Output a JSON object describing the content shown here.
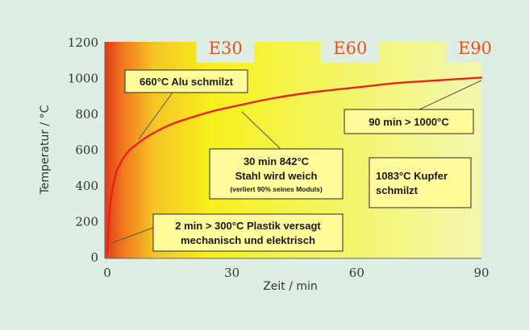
{
  "chart_data": {
    "type": "line",
    "xlabel": "Zeit / min",
    "ylabel": "Temperatur / °C",
    "xlim": [
      0,
      90
    ],
    "ylim": [
      0,
      1200
    ],
    "xticks": [
      "0",
      "30",
      "60",
      "90"
    ],
    "yticks": [
      "0",
      "200",
      "400",
      "600",
      "800",
      "1000",
      "1200"
    ],
    "series": [
      {
        "color": "#e8231c",
        "x": [
          0,
          0.5,
          1,
          2,
          3,
          5,
          7.5,
          10,
          15,
          20,
          25,
          30,
          40,
          50,
          60,
          70,
          80,
          90
        ],
        "y": [
          20,
          240,
          350,
          460,
          520,
          590,
          640,
          680,
          740,
          780,
          815,
          842,
          890,
          925,
          950,
          975,
          990,
          1005
        ]
      }
    ],
    "fire_classes": [
      {
        "label": "E30",
        "x": 30
      },
      {
        "label": "E60",
        "x": 60
      },
      {
        "label": "E90",
        "x": 90
      }
    ],
    "annotations": [
      {
        "id": "alu",
        "lines": [
          "660°C Alu schmilzt"
        ],
        "small": ""
      },
      {
        "id": "stahl",
        "lines": [
          "30 min 842°C",
          "Stahl wird weich"
        ],
        "small": "(verliert 90% seines Moduls)"
      },
      {
        "id": "over1000",
        "lines": [
          "90 min > 1000°C"
        ],
        "small": ""
      },
      {
        "id": "kupfer",
        "lines": [
          "1083°C Kupfer",
          "schmilzt"
        ],
        "small": ""
      },
      {
        "id": "plastik",
        "lines": [
          "2 min > 300°C Plastik versagt",
          "mechanisch und elektrisch"
        ],
        "small": ""
      }
    ],
    "colors": {
      "hot": "#e8421c",
      "orange": "#f5a623",
      "yellow": "#f6f21a",
      "pale": "#f4f7a6",
      "line": "#e8231c",
      "annotation_box": "#fffb9a"
    }
  }
}
